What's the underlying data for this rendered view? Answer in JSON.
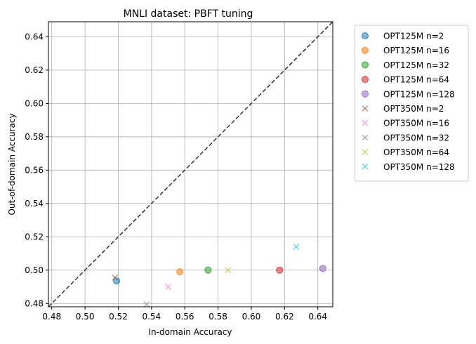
{
  "chart_data": {
    "type": "scatter",
    "title": "MNLI dataset: PBFT tuning",
    "xlabel": "In-domain Accuracy",
    "ylabel": "Out-of-domain Accuracy",
    "xlim": [
      0.478,
      0.649
    ],
    "ylim": [
      0.478,
      0.649
    ],
    "xticks": [
      "0.48",
      "0.50",
      "0.52",
      "0.54",
      "0.56",
      "0.58",
      "0.60",
      "0.62",
      "0.64"
    ],
    "yticks": [
      "0.48",
      "0.50",
      "0.52",
      "0.54",
      "0.56",
      "0.58",
      "0.60",
      "0.62",
      "0.64"
    ],
    "grid": true,
    "diagonal": "y = x (dashed)",
    "legend_position": "outside-right",
    "series": [
      {
        "name": "OPT125M n=2",
        "marker": "circle",
        "color": "#1f77b4",
        "x": 0.519,
        "y": 0.4935
      },
      {
        "name": "OPT125M n=16",
        "marker": "circle",
        "color": "#ff7f0e",
        "x": 0.557,
        "y": 0.499
      },
      {
        "name": "OPT125M n=32",
        "marker": "circle",
        "color": "#2ca02c",
        "x": 0.574,
        "y": 0.5
      },
      {
        "name": "OPT125M n=64",
        "marker": "circle",
        "color": "#d62728",
        "x": 0.617,
        "y": 0.5
      },
      {
        "name": "OPT125M n=128",
        "marker": "circle",
        "color": "#9467bd",
        "x": 0.643,
        "y": 0.501
      },
      {
        "name": "OPT350M n=2",
        "marker": "x",
        "color": "#8c564b",
        "x": 0.518,
        "y": 0.4955
      },
      {
        "name": "OPT350M n=16",
        "marker": "x",
        "color": "#e377c2",
        "x": 0.55,
        "y": 0.49
      },
      {
        "name": "OPT350M n=32",
        "marker": "x",
        "color": "#7f7f7f",
        "x": 0.537,
        "y": 0.4795
      },
      {
        "name": "OPT350M n=64",
        "marker": "x",
        "color": "#bcbd22",
        "x": 0.586,
        "y": 0.5
      },
      {
        "name": "OPT350M n=128",
        "marker": "x",
        "color": "#17becf",
        "x": 0.627,
        "y": 0.514
      }
    ]
  }
}
